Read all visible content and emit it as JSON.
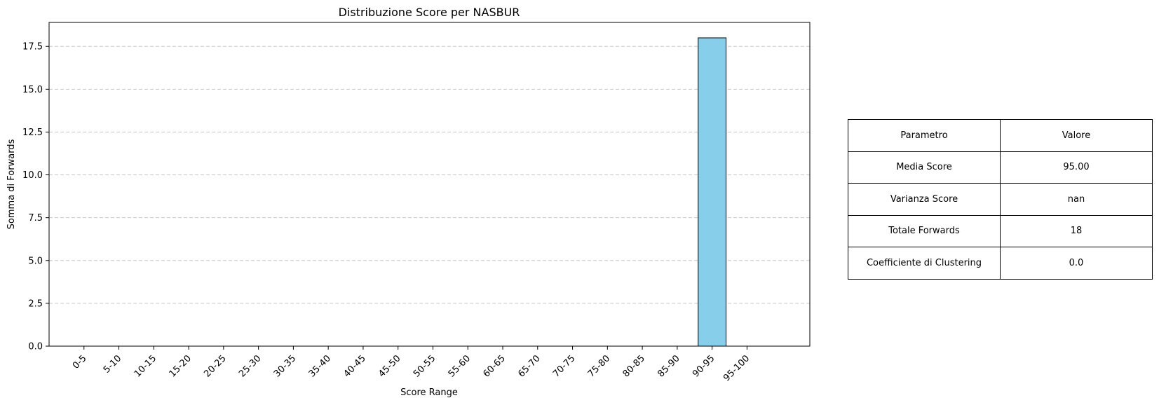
{
  "chart_data": {
    "type": "bar",
    "title": "Distribuzione Score per NASBUR",
    "xlabel": "Score Range",
    "ylabel": "Somma di Forwards",
    "categories": [
      "0-5",
      "5-10",
      "10-15",
      "15-20",
      "20-25",
      "25-30",
      "30-35",
      "35-40",
      "40-45",
      "45-50",
      "50-55",
      "55-60",
      "60-65",
      "65-70",
      "70-75",
      "75-80",
      "80-85",
      "85-90",
      "90-95",
      "95-100"
    ],
    "values": [
      0,
      0,
      0,
      0,
      0,
      0,
      0,
      0,
      0,
      0,
      0,
      0,
      0,
      0,
      0,
      0,
      0,
      0,
      18,
      0
    ],
    "ylim": [
      0,
      18.9
    ],
    "yticks": [
      0.0,
      2.5,
      5.0,
      7.5,
      10.0,
      12.5,
      15.0,
      17.5
    ],
    "ytick_labels": [
      "0.0",
      "2.5",
      "5.0",
      "7.5",
      "10.0",
      "12.5",
      "15.0",
      "17.5"
    ],
    "grid": "y-dashed",
    "bar_color": "#87ceeb",
    "bar_edge_color": "#000000",
    "grid_color": "#c8c8c8"
  },
  "table": {
    "header": [
      "Parametro",
      "Valore"
    ],
    "rows": [
      [
        "Media Score",
        "95.00"
      ],
      [
        "Varianza Score",
        "nan"
      ],
      [
        "Totale Forwards",
        "18"
      ],
      [
        "Coefficiente di Clustering",
        "0.0"
      ]
    ]
  }
}
